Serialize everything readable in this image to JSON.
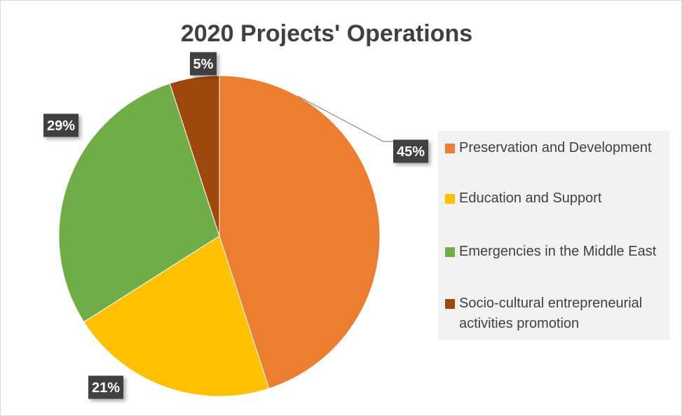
{
  "chart_data": {
    "type": "pie",
    "title": "2020 Projects' Operations",
    "start_angle_deg": 0,
    "direction": "clockwise",
    "legend_position": "right",
    "slices": [
      {
        "name": "Preservation and Development",
        "value": 45,
        "label": "45%",
        "color": "#ED7D31"
      },
      {
        "name": "Education and Support",
        "value": 21,
        "label": "21%",
        "color": "#FFC000"
      },
      {
        "name": "Emergencies in the Middle East",
        "value": 29,
        "label": "29%",
        "color": "#70AD47"
      },
      {
        "name": "Socio-cultural entrepreneurial activities promotion",
        "value": 5,
        "label": "5%",
        "color": "#9E480E"
      }
    ]
  }
}
